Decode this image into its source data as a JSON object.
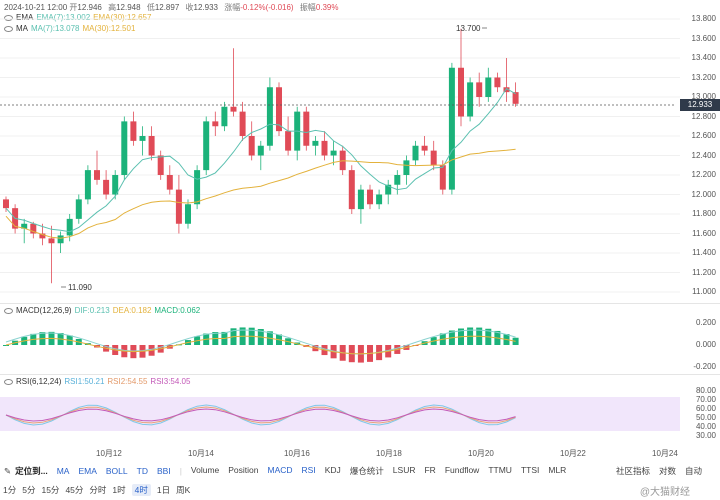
{
  "header": {
    "datetime": "2024-10-21 12:00",
    "open_label": "开",
    "open": "12.946",
    "high_label": "高",
    "high": "12.948",
    "low_label": "低",
    "low": "12.897",
    "close_label": "收",
    "close": "12.933",
    "change_label": "涨幅",
    "change": "-0.12%(-0.016)",
    "amp_label": "振幅",
    "amp": "0.39%"
  },
  "ema": {
    "label": "EMA",
    "ema7": "EMA(7):13.002",
    "ema30": "EMA(30):12.657"
  },
  "ma": {
    "label": "MA",
    "ma7": "MA(7):13.078",
    "ma30": "MA(30):12.501"
  },
  "price_axis": [
    "13.800",
    "13.600",
    "13.400",
    "13.200",
    "13.000",
    "12.800",
    "12.600",
    "12.400",
    "12.200",
    "12.000",
    "11.800",
    "11.600",
    "11.400",
    "11.200",
    "11.000"
  ],
  "current_price": "12.933",
  "high_marker": "13.700",
  "low_marker": "11.090",
  "macd": {
    "label": "MACD(12,26,9)",
    "dif": "DIF:0.213",
    "dea": "DEA:0.182",
    "macd": "MACD:0.062",
    "axis": [
      "0.200",
      "0.000",
      "-0.200"
    ]
  },
  "rsi": {
    "label": "RSI(6,12,24)",
    "rsi1": "RSI1:50.21",
    "rsi2": "RSI2:54.55",
    "rsi3": "RSI3:54.05",
    "axis": [
      "80.00",
      "70.00",
      "60.00",
      "50.00",
      "40.00",
      "30.00"
    ]
  },
  "x_axis": [
    "10月12",
    "10月14",
    "10月16",
    "10月18",
    "10月20",
    "10月22",
    "10月24"
  ],
  "toolbar": {
    "drawing": "定位到...",
    "items": [
      "MA",
      "EMA",
      "BOLL",
      "TD",
      "BBI"
    ],
    "indicators": [
      "Volume",
      "Position",
      "MACD",
      "RSI",
      "KDJ",
      "爆仓统计",
      "LSUR",
      "FR",
      "Fundflow",
      "TTMU",
      "TTSI",
      "MLR"
    ],
    "right": [
      "社区指标",
      "对数",
      "自动"
    ]
  },
  "timeframes": [
    "1分",
    "5分",
    "15分",
    "45分",
    "分时",
    "1时",
    "4时",
    "1日",
    "周K"
  ],
  "selected_tf": "4时",
  "watermark": "@大猫财经",
  "colors": {
    "up": "#1bb27a",
    "down": "#e04b57",
    "ema7": "#5bc0b0",
    "ema30": "#e3b23c",
    "dif": "#8bd3d0",
    "dea": "#e3b23c",
    "rsi1": "#7fc8e8",
    "rsi2": "#e7a37a",
    "rsi3": "#c35ab8"
  },
  "chart_data": {
    "type": "candlestick",
    "series": []
  }
}
